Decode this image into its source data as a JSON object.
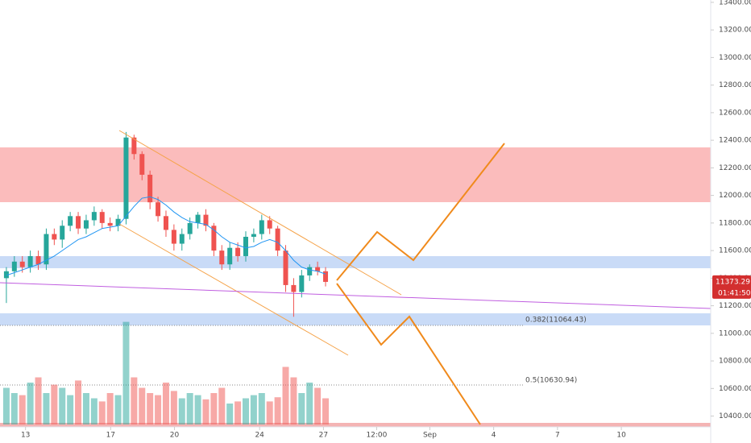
{
  "chart_data": {
    "type": "candlestick",
    "xlim": [
      11.8,
      45.2
    ],
    "xticks": [
      13,
      17,
      20,
      24,
      27,
      {
        "value": 29.5,
        "label": "12:00"
      },
      {
        "value": 32,
        "label": "Sep"
      },
      {
        "value": 35,
        "label": "4"
      },
      {
        "value": 38,
        "label": "7"
      },
      {
        "value": 41,
        "label": "10"
      }
    ],
    "ylim": [
      10380,
      13417
    ],
    "yticks": [
      {
        "value": 10400,
        "label": "10400.00"
      },
      {
        "value": 10600,
        "label": "10600.00"
      },
      {
        "value": 10800,
        "label": "10800.00"
      },
      {
        "value": 11000,
        "label": "11000.00"
      },
      {
        "value": 11200,
        "label": "11200.00"
      },
      {
        "value": 11400,
        "label": "11400.00"
      },
      {
        "value": 11600,
        "label": "11600.00"
      },
      {
        "value": 11800,
        "label": "11800.00"
      },
      {
        "value": 12000,
        "label": "12000.00"
      },
      {
        "value": 12200,
        "label": "12200.00"
      },
      {
        "value": 12400,
        "label": "12400.00"
      },
      {
        "value": 12600,
        "label": "12600.00"
      },
      {
        "value": 12800,
        "label": "12800.00"
      },
      {
        "value": 13000,
        "label": "13000.00"
      },
      {
        "value": 13200,
        "label": "13200.00"
      },
      {
        "value": 13400,
        "label": "13400.00"
      }
    ],
    "up_color": "#26a69a",
    "down_color": "#ef5350",
    "x": [
      12.1,
      12.475,
      12.85,
      13.225,
      13.6,
      13.975,
      14.35,
      14.725,
      15.1,
      15.475,
      15.85,
      16.225,
      16.6,
      16.975,
      17.35,
      17.725,
      18.1,
      18.475,
      18.85,
      19.225,
      19.6,
      19.975,
      20.35,
      20.725,
      21.1,
      21.475,
      21.85,
      22.225,
      22.6,
      22.975,
      23.35,
      23.725,
      24.1,
      24.475,
      24.85,
      25.225,
      25.6,
      25.975,
      26.35,
      26.725,
      27.1
    ],
    "open": [
      11400,
      11450,
      11520,
      11480,
      11560,
      11500,
      11720,
      11680,
      11780,
      11850,
      11760,
      11820,
      11880,
      11800,
      11780,
      11830,
      12420,
      12300,
      12150,
      11950,
      11850,
      11750,
      11650,
      11720,
      11800,
      11860,
      11780,
      11600,
      11500,
      11620,
      11560,
      11700,
      11720,
      11820,
      11760,
      11600,
      11350,
      11300,
      11420,
      11480,
      11450
    ],
    "high": [
      11480,
      11560,
      11560,
      11600,
      11600,
      11760,
      11760,
      11820,
      11880,
      11880,
      11860,
      11920,
      11900,
      11840,
      11860,
      12460,
      12440,
      12320,
      12180,
      11990,
      11890,
      11790,
      11760,
      11840,
      11880,
      11900,
      11800,
      11640,
      11660,
      11660,
      11740,
      11760,
      11860,
      11850,
      11780,
      11640,
      11400,
      11460,
      11500,
      11520,
      11480
    ],
    "low": [
      11220,
      11410,
      11440,
      11440,
      11460,
      11460,
      11640,
      11620,
      11740,
      11720,
      11720,
      11780,
      11760,
      11740,
      11740,
      11790,
      12260,
      12110,
      11900,
      11810,
      11700,
      11600,
      11600,
      11680,
      11760,
      11740,
      11560,
      11460,
      11460,
      11520,
      11520,
      11660,
      11680,
      11720,
      11560,
      11300,
      11120,
      11260,
      11380,
      11420,
      11340
    ],
    "close": [
      11450,
      11520,
      11480,
      11560,
      11500,
      11720,
      11680,
      11780,
      11850,
      11760,
      11820,
      11880,
      11800,
      11780,
      11830,
      12420,
      12300,
      12150,
      11950,
      11850,
      11750,
      11650,
      11720,
      11800,
      11860,
      11780,
      11600,
      11500,
      11620,
      11560,
      11700,
      11720,
      11820,
      11760,
      11600,
      11350,
      11300,
      11420,
      11480,
      11450,
      11373
    ],
    "volume": [
      35,
      30,
      28,
      40,
      45,
      30,
      38,
      35,
      28,
      42,
      30,
      25,
      22,
      30,
      28,
      98,
      45,
      35,
      30,
      28,
      40,
      32,
      25,
      30,
      28,
      24,
      30,
      35,
      20,
      22,
      25,
      28,
      30,
      22,
      26,
      55,
      45,
      30,
      40,
      35,
      25
    ],
    "ma": [
      11420,
      11440,
      11460,
      11480,
      11500,
      11530,
      11560,
      11600,
      11640,
      11680,
      11700,
      11730,
      11760,
      11770,
      11780,
      11850,
      11920,
      11980,
      11990,
      11970,
      11930,
      11880,
      11840,
      11810,
      11800,
      11790,
      11750,
      11700,
      11660,
      11640,
      11620,
      11630,
      11660,
      11680,
      11660,
      11600,
      11530,
      11480,
      11460,
      11450,
      11430
    ],
    "ma_color": "#2196f3",
    "last_price": 11373.29,
    "countdown": "01:41:50",
    "fib_labels": [
      "0.382(11064.43)",
      "0.5(10630.94)"
    ]
  }
}
